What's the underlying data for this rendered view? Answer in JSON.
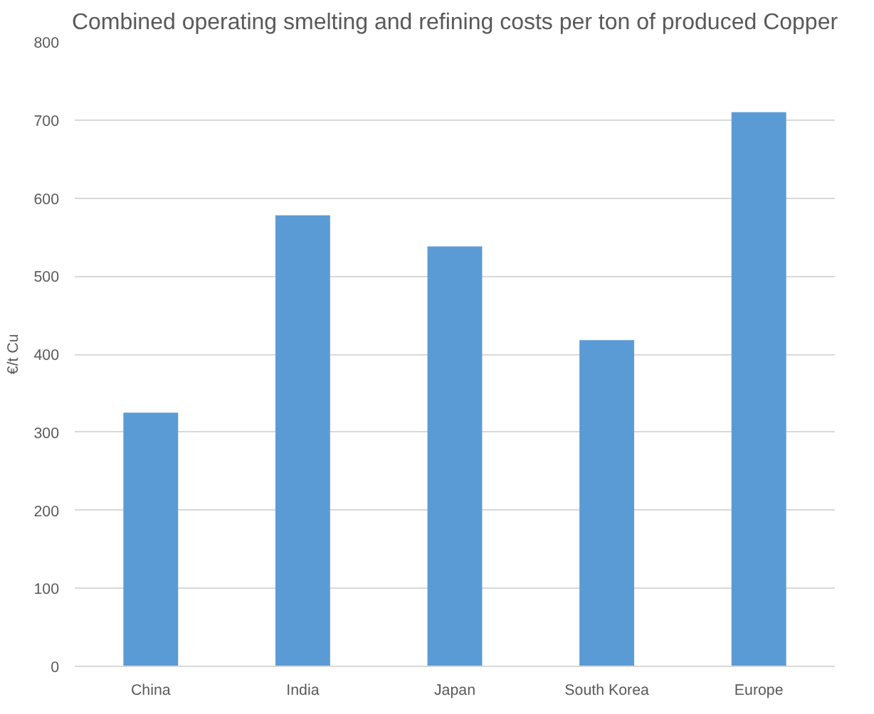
{
  "chart_data": {
    "type": "bar",
    "title": "Combined operating smelting and refining costs per ton of produced Copper",
    "categories": [
      "China",
      "India",
      "Japan",
      "South Korea",
      "Europe"
    ],
    "values": [
      325,
      578,
      538,
      418,
      710
    ],
    "color": "#5b9bd5",
    "ylabel": "€/t Cu",
    "ylim": [
      0,
      800
    ],
    "yticks": [
      0,
      100,
      200,
      300,
      400,
      500,
      600,
      700,
      800
    ],
    "grid": "y"
  }
}
